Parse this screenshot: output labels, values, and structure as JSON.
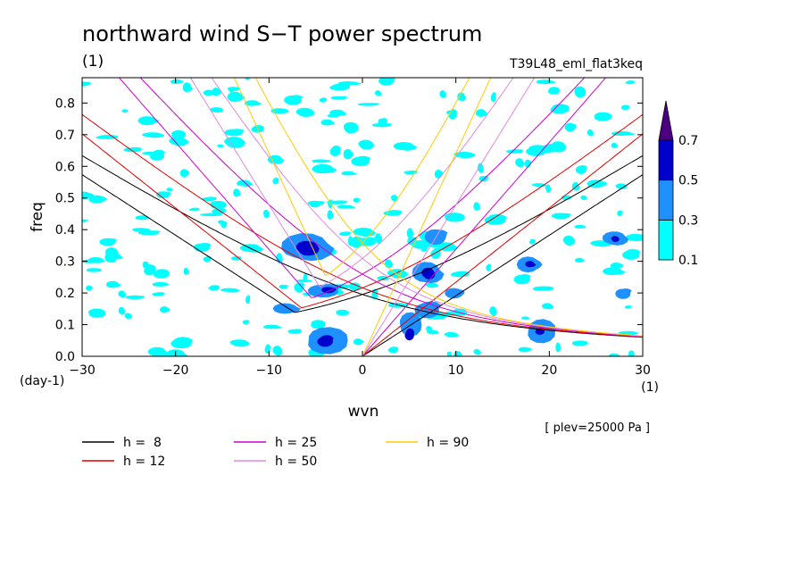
{
  "chart_data": {
    "type": "heatmap",
    "title": "northward wind S−T power spectrum",
    "subtitle": "(1)",
    "experiment": "T39L48_eml_flat3keq",
    "xlabel": "wvn",
    "ylabel": "freq",
    "y_unit": "(day-1)",
    "x_unit": "(1)",
    "xlim": [
      -30,
      30
    ],
    "ylim": [
      0,
      0.88
    ],
    "x_ticks": [
      -30,
      -20,
      -10,
      0,
      10,
      20,
      30
    ],
    "x_tick_labels": [
      "−30",
      "−20",
      "−10",
      "0",
      "10",
      "20",
      "30"
    ],
    "y_ticks": [
      0.0,
      0.1,
      0.2,
      0.3,
      0.4,
      0.5,
      0.6,
      0.7,
      0.8
    ],
    "y_tick_labels": [
      "0.0",
      "0.1",
      "0.2",
      "0.3",
      "0.4",
      "0.5",
      "0.6",
      "0.7",
      "0.8"
    ],
    "level_note": "[ plev=25000 Pa ]",
    "colorbar": {
      "levels": [
        0.1,
        0.3,
        0.5,
        0.7
      ],
      "level_labels": [
        "0.1",
        "0.3",
        "0.5",
        "0.7"
      ],
      "colors": [
        "#00ffff",
        "#1e90ff",
        "#0000cd",
        "#4b0082"
      ]
    },
    "contours": [
      {
        "x": -6,
        "y": 0.34,
        "rx": 3.0,
        "ry": 0.05,
        "level": 0.3
      },
      {
        "x": -6,
        "y": 0.34,
        "rx": 1.4,
        "ry": 0.025,
        "level": 0.5
      },
      {
        "x": -4,
        "y": 0.05,
        "rx": 2.6,
        "ry": 0.045,
        "level": 0.3
      },
      {
        "x": -4,
        "y": 0.05,
        "rx": 1.0,
        "ry": 0.02,
        "level": 0.5
      },
      {
        "x": -4,
        "y": 0.21,
        "rx": 2.0,
        "ry": 0.025,
        "level": 0.3
      },
      {
        "x": -3.5,
        "y": 0.21,
        "rx": 0.9,
        "ry": 0.012,
        "level": 0.5
      },
      {
        "x": -8,
        "y": 0.15,
        "rx": 1.6,
        "ry": 0.02,
        "level": 0.3
      },
      {
        "x": 7,
        "y": 0.26,
        "rx": 1.8,
        "ry": 0.04,
        "level": 0.3
      },
      {
        "x": 7,
        "y": 0.26,
        "rx": 0.8,
        "ry": 0.02,
        "level": 0.5
      },
      {
        "x": 5,
        "y": 0.1,
        "rx": 1.4,
        "ry": 0.04,
        "level": 0.3
      },
      {
        "x": 5,
        "y": 0.07,
        "rx": 0.6,
        "ry": 0.02,
        "level": 0.5
      },
      {
        "x": 7,
        "y": 0.15,
        "rx": 1.6,
        "ry": 0.03,
        "level": 0.3
      },
      {
        "x": 8,
        "y": 0.38,
        "rx": 1.4,
        "ry": 0.03,
        "level": 0.3
      },
      {
        "x": 18,
        "y": 0.29,
        "rx": 1.5,
        "ry": 0.03,
        "level": 0.3
      },
      {
        "x": 18,
        "y": 0.29,
        "rx": 0.6,
        "ry": 0.012,
        "level": 0.5
      },
      {
        "x": 27,
        "y": 0.37,
        "rx": 1.5,
        "ry": 0.025,
        "level": 0.3
      },
      {
        "x": 27,
        "y": 0.37,
        "rx": 0.5,
        "ry": 0.01,
        "level": 0.5
      },
      {
        "x": 19,
        "y": 0.08,
        "rx": 1.8,
        "ry": 0.04,
        "level": 0.3
      },
      {
        "x": 19,
        "y": 0.08,
        "rx": 0.6,
        "ry": 0.012,
        "level": 0.5
      },
      {
        "x": 28,
        "y": 0.2,
        "rx": 1.0,
        "ry": 0.02,
        "level": 0.3
      },
      {
        "x": 10,
        "y": 0.2,
        "rx": 1.2,
        "ry": 0.02,
        "level": 0.3
      }
    ],
    "series": [
      {
        "name": "h =  8",
        "h": 8,
        "color": "#000000"
      },
      {
        "name": "h = 12",
        "h": 12,
        "color": "#e00000"
      },
      {
        "name": "h = 25",
        "h": 25,
        "color": "#cc00cc"
      },
      {
        "name": "h = 50",
        "h": 50,
        "color": "#e08ae0"
      },
      {
        "name": "h = 90",
        "h": 90,
        "color": "#ffcc00"
      }
    ],
    "grid": false,
    "legend_position": "bottom"
  }
}
